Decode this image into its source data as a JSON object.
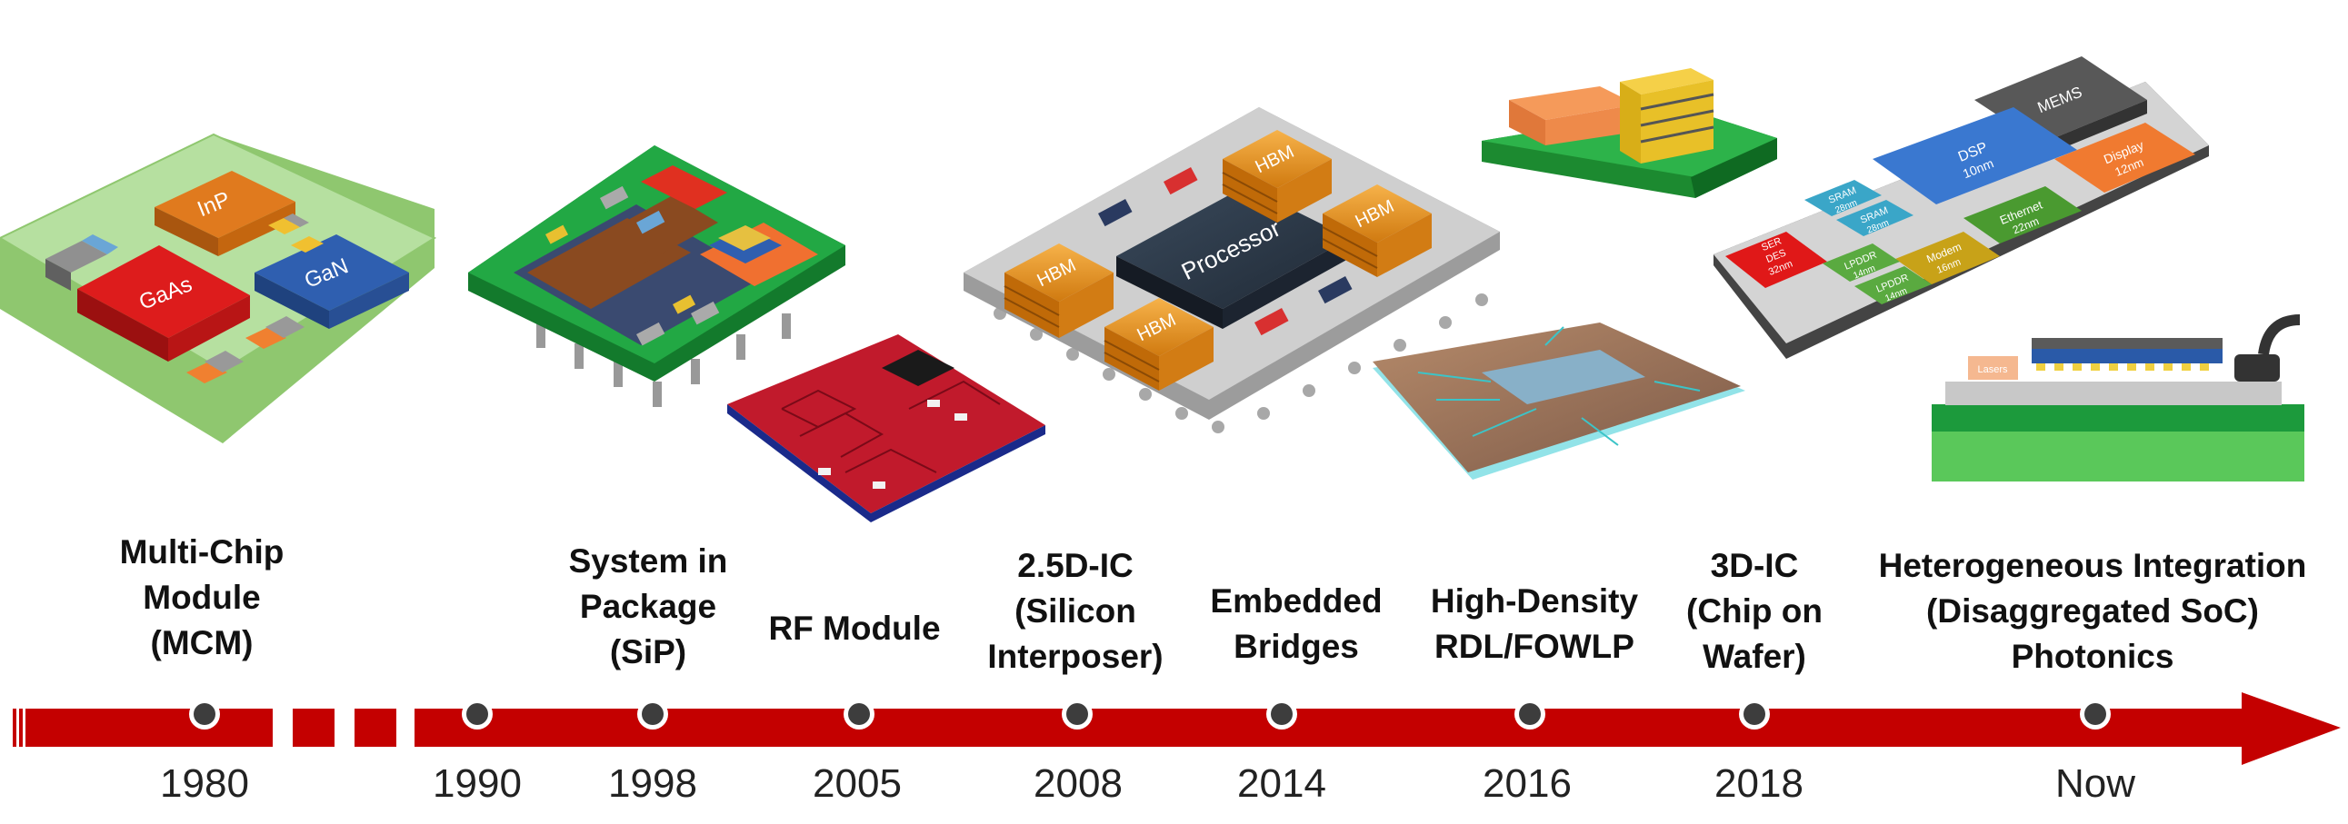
{
  "timeline": {
    "milestones": [
      {
        "id": "mcm",
        "year": "1980",
        "label_lines": [
          "Multi-Chip",
          "Module",
          "(MCM)"
        ]
      },
      {
        "id": "y1990",
        "year": "1990",
        "label_lines": []
      },
      {
        "id": "sip",
        "year": "1998",
        "label_lines": [
          "System in",
          "Package",
          "(SiP)"
        ]
      },
      {
        "id": "rf",
        "year": "2005",
        "label_lines": [
          "RF Module"
        ]
      },
      {
        "id": "interposer",
        "year": "2008",
        "label_lines": [
          "2.5D-IC",
          "(Silicon",
          "Interposer)"
        ]
      },
      {
        "id": "bridges",
        "year": "2014",
        "label_lines": [
          "Embedded",
          "Bridges"
        ]
      },
      {
        "id": "fowlp",
        "year": "2016",
        "label_lines": [
          "High-Density",
          "RDL/FOWLP"
        ]
      },
      {
        "id": "coW",
        "year": "2018",
        "label_lines": [
          "3D-IC",
          "(Chip on",
          "Wafer)"
        ]
      },
      {
        "id": "hi",
        "year": "Now",
        "label_lines": [
          "Heterogeneous Integration",
          "(Disaggregated SoC)",
          "Photonics"
        ]
      }
    ]
  },
  "illustrations": {
    "mcm": {
      "chips": [
        "InP",
        "GaAs",
        "GaN"
      ]
    },
    "interposer": {
      "processor": "Processor",
      "memory": [
        "HBM",
        "HBM",
        "HBM",
        "HBM"
      ]
    },
    "soc": {
      "chiplets": [
        {
          "name": "MEMS",
          "lines": [
            "MEMS"
          ]
        },
        {
          "name": "DSP",
          "lines": [
            "DSP",
            "10nm"
          ]
        },
        {
          "name": "Display",
          "lines": [
            "Display",
            "12nm"
          ]
        },
        {
          "name": "SRAM1",
          "lines": [
            "SRAM",
            "28nm"
          ]
        },
        {
          "name": "SRAM2",
          "lines": [
            "SRAM",
            "28nm"
          ]
        },
        {
          "name": "Ethernet",
          "lines": [
            "Ethernet",
            "22nm"
          ]
        },
        {
          "name": "SERDES",
          "lines": [
            "SER",
            "DES",
            "32nm"
          ]
        },
        {
          "name": "Modem",
          "lines": [
            "Modem",
            "16nm"
          ]
        },
        {
          "name": "LPDDR1",
          "lines": [
            "LPDDR",
            "14nm"
          ]
        },
        {
          "name": "LPDDR2",
          "lines": [
            "LPDDR",
            "14nm"
          ]
        }
      ]
    },
    "photonics": {
      "laser": "Lasers"
    }
  },
  "colors": {
    "arrow": "#c40000",
    "dot": "#3d3d3d",
    "mcm_base": "#a8d68b",
    "sip_base": "#1c9a3c",
    "interposer_base": "#c9c9c9",
    "hbm": "#f0a030",
    "processor": "#2f3b4a"
  }
}
